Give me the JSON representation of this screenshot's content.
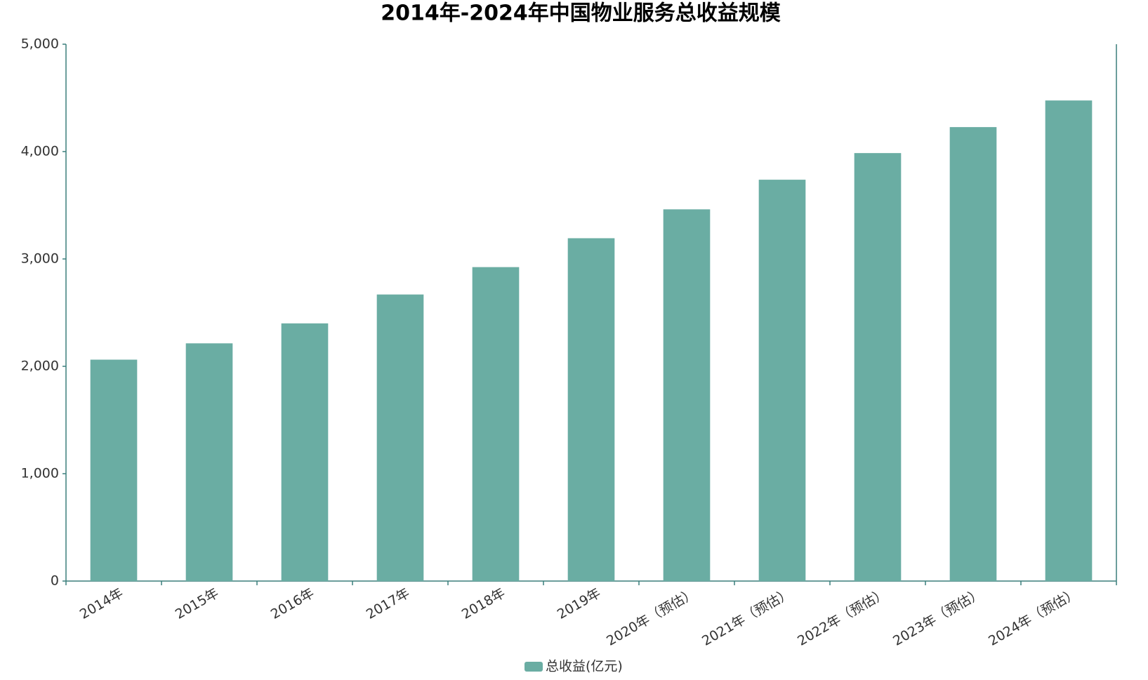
{
  "chart_data": {
    "type": "bar",
    "title": "2014年-2024年中国物业服务总收益规模",
    "categories": [
      "2014年",
      "2015年",
      "2016年",
      "2017年",
      "2018年",
      "2019年",
      "2020年（预估）",
      "2021年（预估）",
      "2022年（预估）",
      "2023年（预估）",
      "2024年（预估）"
    ],
    "series": [
      {
        "name": "总收益(亿元)",
        "color": "#6aada3",
        "values": [
          2062,
          2214,
          2400,
          2669,
          2924,
          3193,
          3462,
          3738,
          3986,
          4228,
          4476
        ]
      }
    ],
    "ylim": [
      0,
      5000
    ],
    "yticks": [
      0,
      {
        "value": 1000,
        "label": "1,000"
      },
      {
        "value": 2000,
        "label": "2,000"
      },
      {
        "value": 3000,
        "label": "3,000"
      },
      {
        "value": 4000,
        "label": "4,000"
      },
      {
        "value": 5000,
        "label": "5,000"
      }
    ],
    "grid": false
  }
}
